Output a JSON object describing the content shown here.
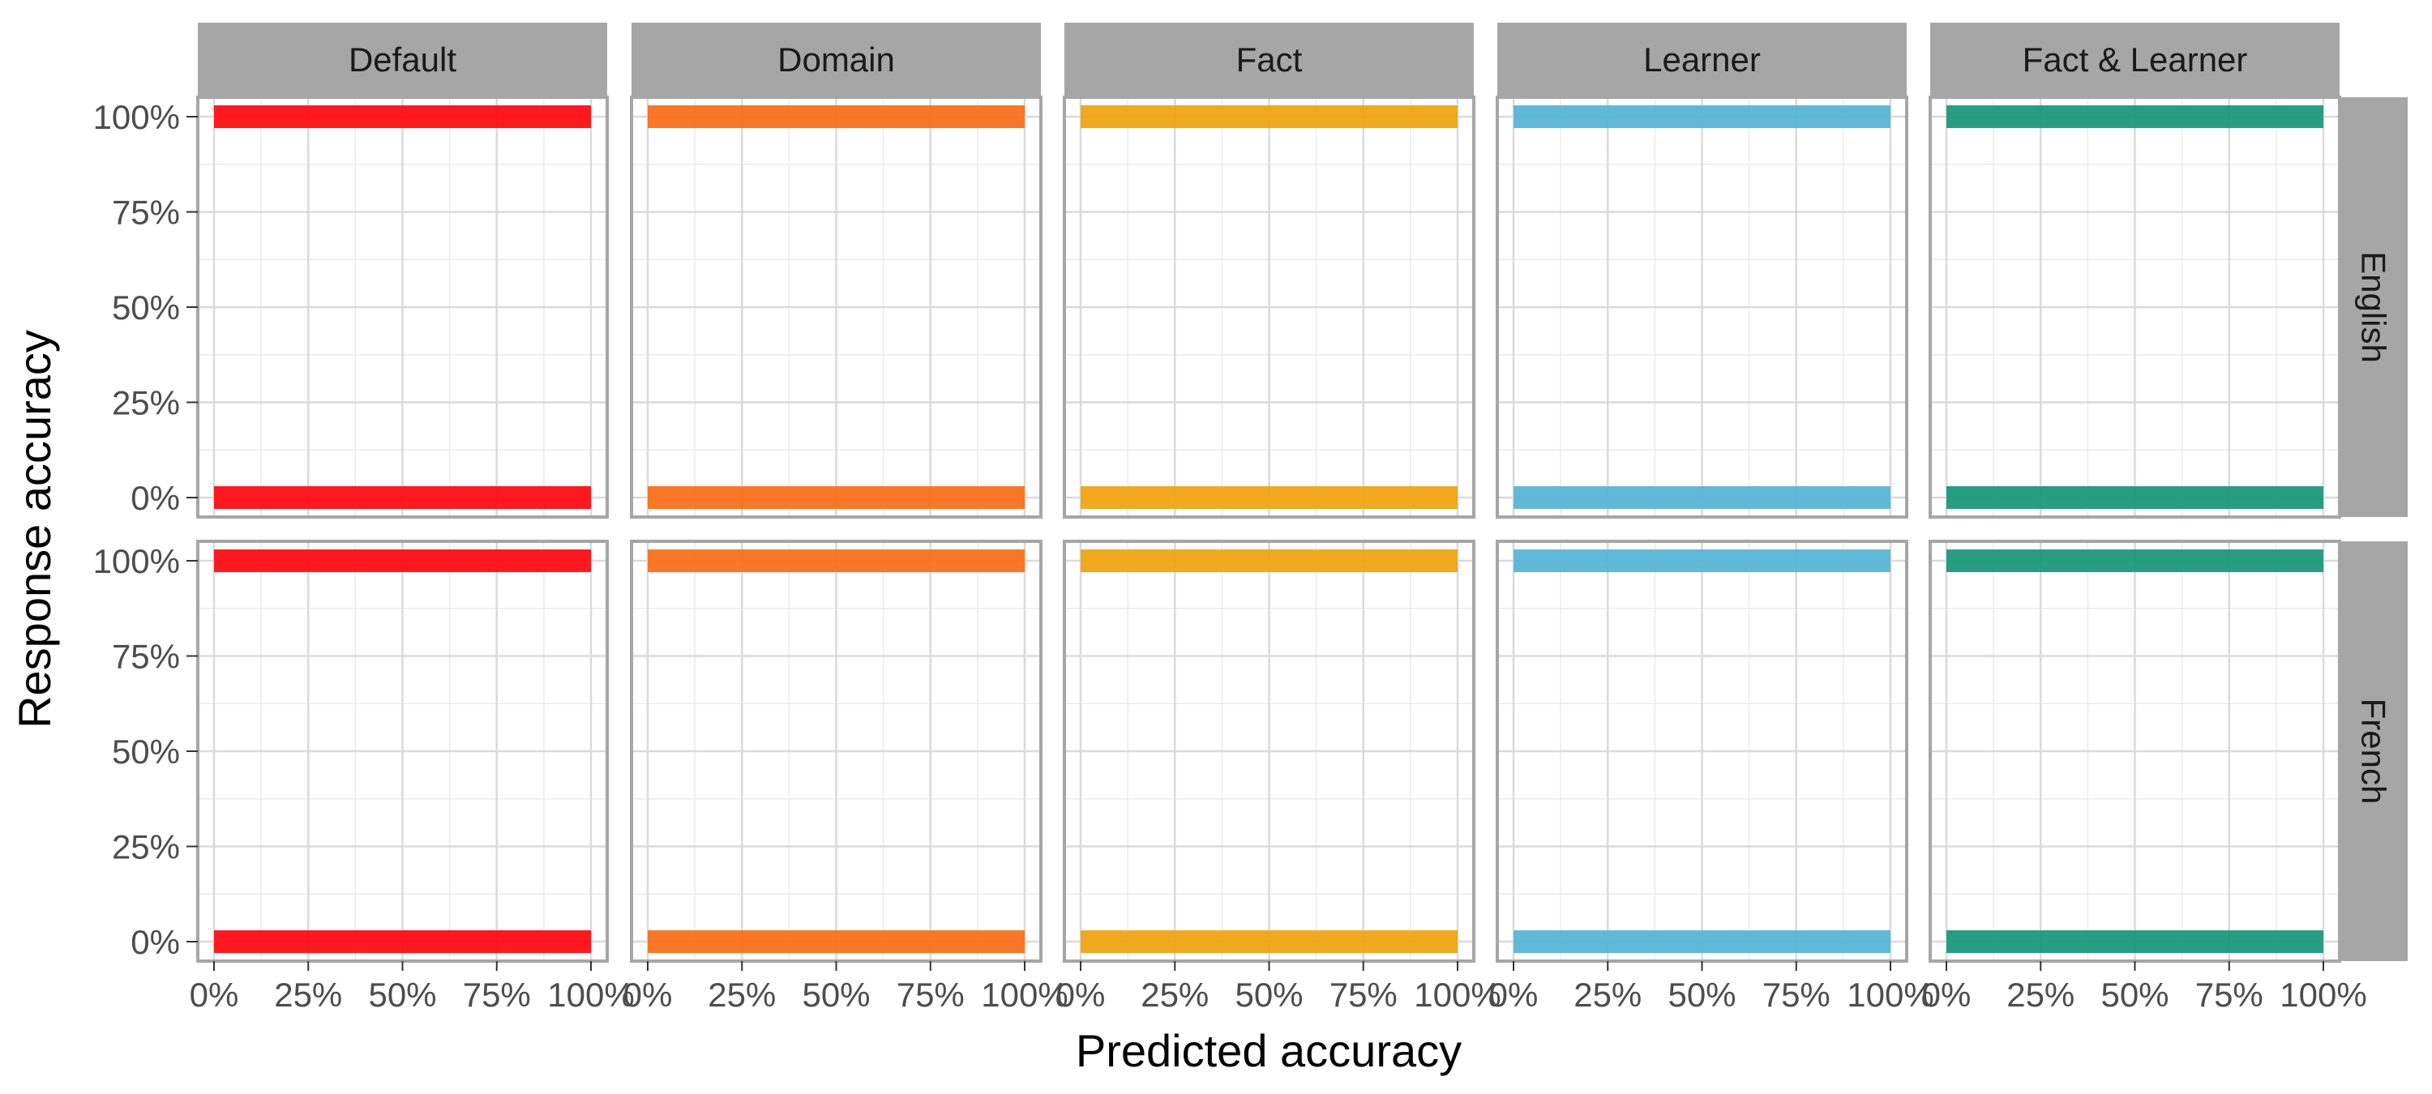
{
  "chart_data": {
    "type": "scatter",
    "title": "",
    "xlabel": "Predicted accuracy",
    "ylabel": "Response accuracy",
    "xlim": [
      0,
      1
    ],
    "ylim": [
      0,
      1
    ],
    "x_ticks": [
      "0%",
      "25%",
      "50%",
      "75%",
      "100%"
    ],
    "y_ticks": [
      "0%",
      "25%",
      "50%",
      "75%",
      "100%"
    ],
    "grid": true,
    "facet_columns": [
      "Default",
      "Domain",
      "Fact",
      "Learner",
      "Fact & Learner"
    ],
    "facet_rows": [
      "English",
      "French"
    ],
    "series_colors": {
      "Default": "#FF0D12",
      "Domain": "#F9701A",
      "Fact": "#F0A413",
      "Learner": "#58B5D6",
      "Fact & Learner": "#1B997B"
    },
    "panels": [
      {
        "row": "English",
        "column": "Default",
        "bands": [
          {
            "y": 1,
            "x_range": [
              0,
              1
            ]
          },
          {
            "y": 0,
            "x_range": [
              0,
              1
            ]
          }
        ]
      },
      {
        "row": "English",
        "column": "Domain",
        "bands": [
          {
            "y": 1,
            "x_range": [
              0,
              1
            ]
          },
          {
            "y": 0,
            "x_range": [
              0,
              1
            ]
          }
        ]
      },
      {
        "row": "English",
        "column": "Fact",
        "bands": [
          {
            "y": 1,
            "x_range": [
              0,
              1
            ]
          },
          {
            "y": 0,
            "x_range": [
              0,
              1
            ]
          }
        ]
      },
      {
        "row": "English",
        "column": "Learner",
        "bands": [
          {
            "y": 1,
            "x_range": [
              0,
              1
            ]
          },
          {
            "y": 0,
            "x_range": [
              0,
              1
            ]
          }
        ]
      },
      {
        "row": "English",
        "column": "Fact & Learner",
        "bands": [
          {
            "y": 1,
            "x_range": [
              0,
              1
            ]
          },
          {
            "y": 0,
            "x_range": [
              0,
              1
            ]
          }
        ]
      },
      {
        "row": "French",
        "column": "Default",
        "bands": [
          {
            "y": 1,
            "x_range": [
              0,
              1
            ]
          },
          {
            "y": 0,
            "x_range": [
              0,
              1
            ]
          }
        ]
      },
      {
        "row": "French",
        "column": "Domain",
        "bands": [
          {
            "y": 1,
            "x_range": [
              0,
              1
            ]
          },
          {
            "y": 0,
            "x_range": [
              0,
              1
            ]
          }
        ]
      },
      {
        "row": "French",
        "column": "Fact",
        "bands": [
          {
            "y": 1,
            "x_range": [
              0,
              1
            ]
          },
          {
            "y": 0,
            "x_range": [
              0,
              1
            ]
          }
        ]
      },
      {
        "row": "French",
        "column": "Learner",
        "bands": [
          {
            "y": 1,
            "x_range": [
              0,
              1
            ]
          },
          {
            "y": 0,
            "x_range": [
              0,
              1
            ]
          }
        ]
      },
      {
        "row": "French",
        "column": "Fact & Learner",
        "bands": [
          {
            "y": 1,
            "x_range": [
              0,
              1
            ]
          },
          {
            "y": 0,
            "x_range": [
              0,
              1
            ]
          }
        ]
      }
    ]
  }
}
